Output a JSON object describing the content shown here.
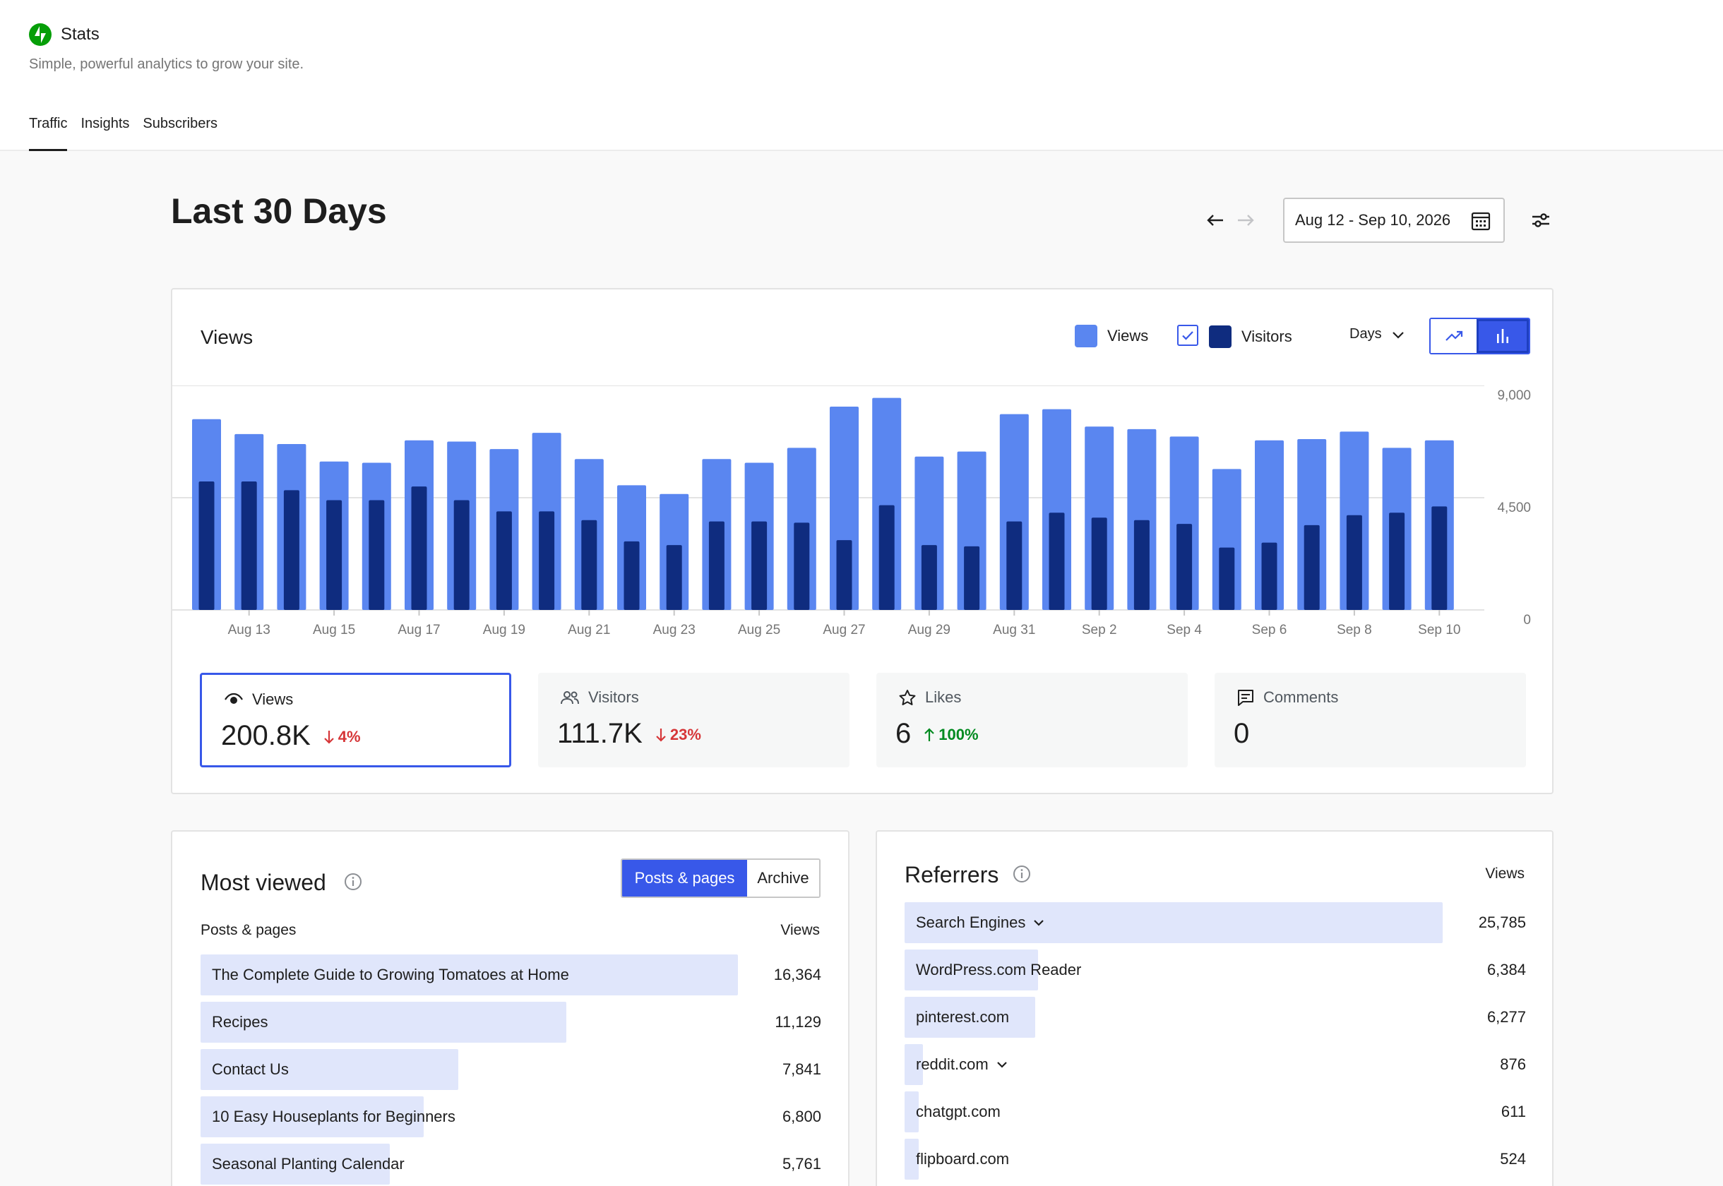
{
  "header": {
    "app_name": "Stats",
    "tagline": "Simple, powerful analytics to grow your site.",
    "brand_color": "#069e08",
    "tabs": [
      {
        "label": "Traffic",
        "active": true
      },
      {
        "label": "Insights",
        "active": false
      },
      {
        "label": "Subscribers",
        "active": false
      }
    ]
  },
  "period": {
    "title": "Last 30 Days",
    "date_range": "Aug 12 - Sep 10, 2026",
    "prev_icon": "arrow-left-icon",
    "next_icon": "arrow-right-icon",
    "next_disabled": true
  },
  "views_chart": {
    "title": "Views",
    "legend": {
      "views": "Views",
      "visitors": "Visitors",
      "visitors_checked": true
    },
    "interval": "Days",
    "mode": "bar",
    "colors": {
      "views": "#5a86f0",
      "visitors": "#0f2c7f",
      "accent": "#3858e9"
    }
  },
  "chart_data": {
    "type": "bar",
    "categories": [
      "Aug 12",
      "Aug 13",
      "Aug 14",
      "Aug 15",
      "Aug 16",
      "Aug 17",
      "Aug 18",
      "Aug 19",
      "Aug 20",
      "Aug 21",
      "Aug 22",
      "Aug 23",
      "Aug 24",
      "Aug 25",
      "Aug 26",
      "Aug 27",
      "Aug 28",
      "Aug 29",
      "Aug 30",
      "Aug 31",
      "Sep 1",
      "Sep 2",
      "Sep 3",
      "Sep 4",
      "Sep 5",
      "Sep 6",
      "Sep 7",
      "Sep 8",
      "Sep 9",
      "Sep 10"
    ],
    "tick_labels": [
      "Aug 13",
      "Aug 15",
      "Aug 17",
      "Aug 19",
      "Aug 21",
      "Aug 23",
      "Aug 25",
      "Aug 27",
      "Aug 29",
      "Aug 31",
      "Sep 2",
      "Sep 4",
      "Sep 6",
      "Sep 8",
      "Sep 10"
    ],
    "series": [
      {
        "name": "Views",
        "values": [
          7650,
          7050,
          6650,
          5950,
          5900,
          6800,
          6750,
          6450,
          7100,
          6050,
          5000,
          4650,
          6050,
          5900,
          6500,
          8150,
          8500,
          6150,
          6350,
          7850,
          8050,
          7350,
          7250,
          6950,
          5650,
          6800,
          6850,
          7150,
          6500,
          6800
        ]
      },
      {
        "name": "Visitors",
        "values": [
          5150,
          5150,
          4800,
          4400,
          4400,
          4950,
          4400,
          3950,
          3950,
          3600,
          2750,
          2600,
          3550,
          3550,
          3500,
          2800,
          4200,
          2600,
          2550,
          3550,
          3900,
          3700,
          3600,
          3450,
          2500,
          2700,
          3400,
          3800,
          3900,
          4150
        ]
      }
    ],
    "ylim": [
      0,
      9000
    ],
    "yticks": [
      {
        "value": 0,
        "label": "0"
      },
      {
        "value": 4500,
        "label": "4,500"
      },
      {
        "value": 9000,
        "label": "9,000"
      }
    ],
    "grid": true,
    "ylabel": "",
    "xlabel": ""
  },
  "stats": [
    {
      "label": "Views",
      "icon": "eye-icon",
      "value": "200.8K",
      "delta": "4%",
      "direction": "down",
      "selected": true
    },
    {
      "label": "Visitors",
      "icon": "people-icon",
      "value": "111.7K",
      "delta": "23%",
      "direction": "down",
      "selected": false
    },
    {
      "label": "Likes",
      "icon": "star-icon",
      "value": "6",
      "delta": "100%",
      "direction": "up",
      "selected": false
    },
    {
      "label": "Comments",
      "icon": "comment-icon",
      "value": "0",
      "delta": "",
      "direction": "",
      "selected": false
    }
  ],
  "most_viewed": {
    "title": "Most viewed",
    "tabs": [
      "Posts & pages",
      "Archive"
    ],
    "column_label": "Posts & pages",
    "column_value": "Views",
    "rows": [
      {
        "label": "The Complete Guide to Growing Tomatoes at Home",
        "value": "16,364",
        "views": 16364
      },
      {
        "label": "Recipes",
        "value": "11,129",
        "views": 11129
      },
      {
        "label": "Contact Us",
        "value": "7,841",
        "views": 7841
      },
      {
        "label": "10 Easy Houseplants for Beginners",
        "value": "6,800",
        "views": 6800
      },
      {
        "label": "Seasonal Planting Calendar",
        "value": "5,761",
        "views": 5761
      }
    ]
  },
  "referrers": {
    "title": "Referrers",
    "column_value": "Views",
    "rows": [
      {
        "label": "Search Engines",
        "value": "25,785",
        "views": 25785,
        "expandable": true
      },
      {
        "label": "WordPress.com Reader",
        "value": "6,384",
        "views": 6384,
        "expandable": false
      },
      {
        "label": "pinterest.com",
        "value": "6,277",
        "views": 6277,
        "expandable": false
      },
      {
        "label": "reddit.com",
        "value": "876",
        "views": 876,
        "expandable": true
      },
      {
        "label": "chatgpt.com",
        "value": "611",
        "views": 611,
        "expandable": false
      },
      {
        "label": "flipboard.com",
        "value": "524",
        "views": 524,
        "expandable": false
      }
    ]
  }
}
